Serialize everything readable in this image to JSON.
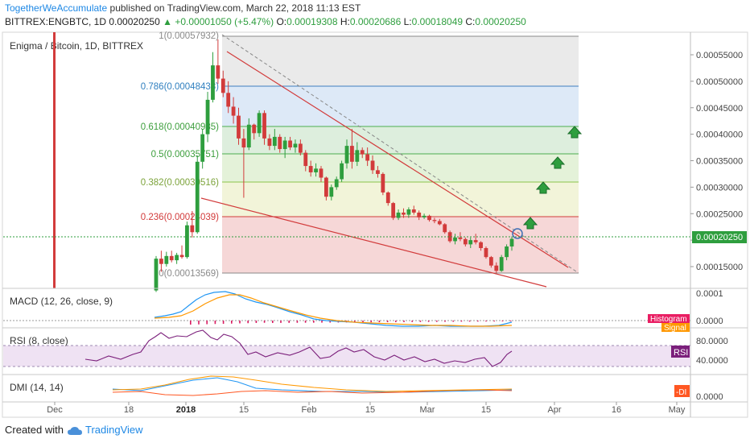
{
  "header": {
    "author": "TogetherWeAccumulate",
    "published_text": " published on TradingView.com, March 22, 2018 11:13 EST",
    "symbol": "BITTREX:ENGBTC, 1D",
    "last": "0.00020250",
    "change": "▲ +0.00001050 (+5.47%)",
    "o_label": "O:",
    "o": "0.00019308",
    "h_label": "H:",
    "h": "0.00020686",
    "l_label": "L:",
    "l": "0.00018049",
    "c_label": "C:",
    "c": "0.00020250"
  },
  "footer": {
    "created_with": "Created with",
    "brand": "TradingView"
  },
  "colors": {
    "up": "#2e9e3e",
    "down": "#d23b3b",
    "accent": "#1e88e5",
    "macd": "#2196f3",
    "signal": "#ff9800",
    "rsi": "#7b1f7b",
    "pdi": "#2196f3",
    "ndi": "#ff5722",
    "adx": "#ff9800"
  },
  "chart_data": [
    {
      "type": "candlestick",
      "title": "Enigma / Bitcoin, 1D, BITTREX",
      "ylim": [
        0.0001,
        0.00058
      ],
      "y_ticks": [
        "0.00055000",
        "0.00050000",
        "0.00045000",
        "0.00040000",
        "0.00035000",
        "0.00030000",
        "0.00025000",
        "0.00020000",
        "0.00015000"
      ],
      "x_ticks": [
        "Dec",
        "18",
        "2018",
        "15",
        "Feb",
        "15",
        "Mar",
        "15",
        "Apr",
        "16",
        "May"
      ],
      "last_price_label": "0.00020250",
      "fib_levels": [
        {
          "ratio": 1,
          "label": "1(0.00057932)",
          "price": 0.00057932
        },
        {
          "ratio": 0.786,
          "label": "0.786(0.00048438)",
          "price": 0.00048438
        },
        {
          "ratio": 0.618,
          "label": "0.618(0.00040985)",
          "price": 0.00040985
        },
        {
          "ratio": 0.5,
          "label": "0.5(0.00035751)",
          "price": 0.00035751
        },
        {
          "ratio": 0.382,
          "label": "0.382(0.00030516)",
          "price": 0.00030516
        },
        {
          "ratio": 0.236,
          "label": "0.236(0.00024039)",
          "price": 0.00024039
        },
        {
          "ratio": 0,
          "label": "0(0.00013569)",
          "price": 0.00013569
        }
      ],
      "candles": [
        [
          0.000105,
          0.00017,
          0.000102,
          0.000165
        ],
        [
          0.000165,
          0.00018,
          0.00014,
          0.000155
        ],
        [
          0.000155,
          0.000178,
          0.00015,
          0.00017
        ],
        [
          0.00017,
          0.00018,
          0.000158,
          0.000162
        ],
        [
          0.000162,
          0.000176,
          0.000155,
          0.000172
        ],
        [
          0.000172,
          0.00019,
          0.000165,
          0.000168
        ],
        [
          0.000168,
          0.000235,
          0.000165,
          0.000228
        ],
        [
          0.000228,
          0.000255,
          0.000205,
          0.000215
        ],
        [
          0.000215,
          0.00036,
          0.000212,
          0.000348
        ],
        [
          0.000348,
          0.00041,
          0.000335,
          0.0004
        ],
        [
          0.0004,
          0.00048,
          0.000385,
          0.000465
        ],
        [
          0.000465,
          0.000555,
          0.00046,
          0.00053
        ],
        [
          0.00053,
          0.000579,
          0.000495,
          0.000505
        ],
        [
          0.000505,
          0.00052,
          0.00047,
          0.000478
        ],
        [
          0.000478,
          0.0005,
          0.00044,
          0.000452
        ],
        [
          0.000452,
          0.00047,
          0.00042,
          0.000435
        ],
        [
          0.000435,
          0.00045,
          0.00038,
          0.000392
        ],
        [
          0.000392,
          0.00041,
          0.00028,
          0.000375
        ],
        [
          0.000375,
          0.00043,
          0.00037,
          0.000418
        ],
        [
          0.000418,
          0.00042,
          0.00039,
          0.000402
        ],
        [
          0.000402,
          0.000445,
          0.000395,
          0.00044
        ],
        [
          0.00044,
          0.000445,
          0.00038,
          0.000392
        ],
        [
          0.000392,
          0.0004,
          0.00037,
          0.000378
        ],
        [
          0.000378,
          0.00041,
          0.00037,
          0.000395
        ],
        [
          0.000395,
          0.0004,
          0.000365,
          0.000372
        ],
        [
          0.000372,
          0.000395,
          0.000355,
          0.000388
        ],
        [
          0.000388,
          0.000395,
          0.00037,
          0.000375
        ],
        [
          0.000375,
          0.00039,
          0.000365,
          0.000382
        ],
        [
          0.000382,
          0.00039,
          0.00036,
          0.000365
        ],
        [
          0.000365,
          0.00037,
          0.00033,
          0.00034
        ],
        [
          0.00034,
          0.00035,
          0.00032,
          0.000328
        ],
        [
          0.000328,
          0.000345,
          0.00032,
          0.000335
        ],
        [
          0.000335,
          0.00034,
          0.00031,
          0.000318
        ],
        [
          0.000318,
          0.00032,
          0.000275,
          0.000282
        ],
        [
          0.000282,
          0.000305,
          0.000275,
          0.0003
        ],
        [
          0.0003,
          0.00032,
          0.000295,
          0.000315
        ],
        [
          0.000315,
          0.00035,
          0.00031,
          0.000345
        ],
        [
          0.000345,
          0.00039,
          0.000335,
          0.000378
        ],
        [
          0.000378,
          0.00041,
          0.000335,
          0.000348
        ],
        [
          0.000348,
          0.000385,
          0.00034,
          0.00037
        ],
        [
          0.00037,
          0.000375,
          0.000355,
          0.000362
        ],
        [
          0.000362,
          0.000375,
          0.00034,
          0.00035
        ],
        [
          0.00035,
          0.00036,
          0.000325,
          0.000332
        ],
        [
          0.000332,
          0.00034,
          0.000318,
          0.000325
        ],
        [
          0.000325,
          0.000328,
          0.000285,
          0.00029
        ],
        [
          0.00029,
          0.000292,
          0.000265,
          0.00027
        ],
        [
          0.00027,
          0.000272,
          0.000238,
          0.000242
        ],
        [
          0.000242,
          0.000258,
          0.000238,
          0.000252
        ],
        [
          0.000252,
          0.00026,
          0.000242,
          0.000248
        ],
        [
          0.000248,
          0.000262,
          0.000242,
          0.000258
        ],
        [
          0.000258,
          0.000265,
          0.000248,
          0.000252
        ],
        [
          0.000252,
          0.000256,
          0.000238,
          0.000243
        ],
        [
          0.000243,
          0.00025,
          0.00024,
          0.000246
        ],
        [
          0.000246,
          0.000248,
          0.000235,
          0.000238
        ],
        [
          0.000238,
          0.000242,
          0.000232,
          0.000236
        ],
        [
          0.000236,
          0.00024,
          0.000228,
          0.00023
        ],
        [
          0.00023,
          0.000232,
          0.000212,
          0.000215
        ],
        [
          0.000215,
          0.000218,
          0.000195,
          0.000198
        ],
        [
          0.000198,
          0.000212,
          0.000192,
          0.000205
        ],
        [
          0.000205,
          0.000215,
          0.000198,
          0.000202
        ],
        [
          0.000202,
          0.000205,
          0.000188,
          0.000192
        ],
        [
          0.000192,
          0.000205,
          0.000185,
          0.0002
        ],
        [
          0.0002,
          0.000212,
          0.000192,
          0.000196
        ],
        [
          0.000196,
          0.000198,
          0.00018,
          0.000185
        ],
        [
          0.000185,
          0.000188,
          0.000165,
          0.000168
        ],
        [
          0.000168,
          0.00017,
          0.000148,
          0.000152
        ],
        [
          0.000152,
          0.000158,
          0.000138,
          0.000142
        ],
        [
          0.000142,
          0.000172,
          0.00014,
          0.000168
        ],
        [
          0.000168,
          0.000192,
          0.000162,
          0.000188
        ],
        [
          0.000188,
          0.000207,
          0.00018,
          0.0002025
        ]
      ],
      "arrows": [
        "up",
        "up",
        "up",
        "up"
      ]
    },
    {
      "type": "line",
      "title": "MACD (12, 26, close, 9)",
      "y_ticks": [
        "0.0001",
        "0.0000"
      ],
      "legend": [
        "Histogram",
        "Signal"
      ]
    },
    {
      "type": "line",
      "title": "RSI (8, close)",
      "y_ticks": [
        "80.0000",
        "40.0000"
      ],
      "legend": [
        "RSI"
      ]
    },
    {
      "type": "line",
      "title": "DMI (14, 14)",
      "y_ticks": [
        "0.0000"
      ],
      "legend": [
        "-DI"
      ]
    }
  ]
}
